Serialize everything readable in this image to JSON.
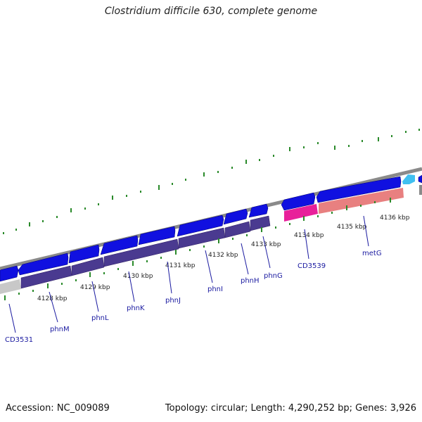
{
  "title": "Clostridium difficile 630, complete genome",
  "accession": "Accession: NC_009089",
  "topology": "Topology: circular; Length: 4,290,252 bp; Genes: 3,926",
  "colors": {
    "backbone": "#8a8a8a",
    "cds_forward": "#1010e0",
    "cds_feature": "#4a3a90",
    "rna_feature": "#e8209a",
    "rna_secondary": "#e88080",
    "small_gene": "#40c0f0",
    "tick_green": "#2a8a2a",
    "label_blue": "#1a1aa0"
  },
  "scale_labels": [
    "4128 kbp",
    "4129 kbp",
    "4130 kbp",
    "4131 kbp",
    "4132 kbp",
    "4133 kbp",
    "4134 kbp",
    "4135 kbp",
    "4136 kbp"
  ],
  "gene_labels": [
    "CD3531",
    "phnM",
    "phnL",
    "phnK",
    "phnJ",
    "phnI",
    "phnH",
    "phnG",
    "CD3539",
    "metG"
  ]
}
